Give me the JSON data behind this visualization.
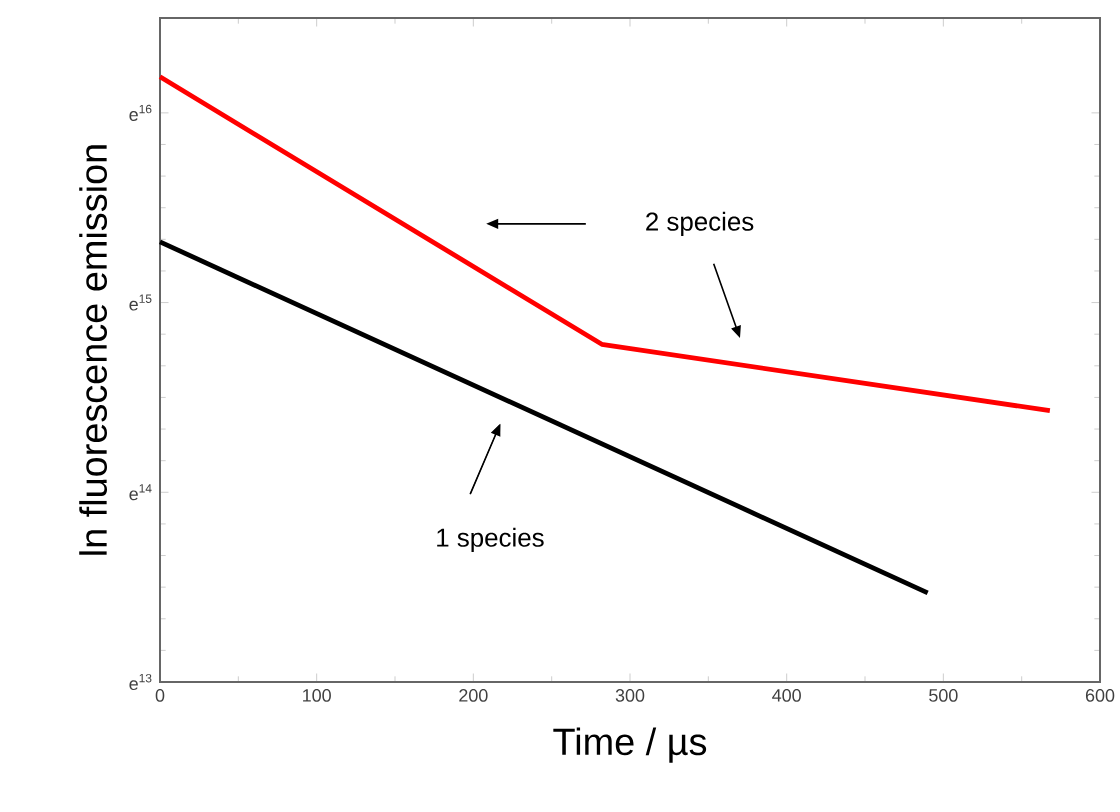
{
  "chart_data": {
    "type": "line",
    "xlabel": "Time / µs",
    "ylabel": "ln fluorescence emission",
    "series": [
      {
        "color": "#000000",
        "x": [
          0,
          490
        ],
        "values": [
          15.32,
          13.47
        ]
      },
      {
        "color": "#ff0000",
        "x": [
          0,
          282,
          568
        ],
        "values": [
          16.19,
          14.78,
          14.43
        ]
      }
    ],
    "xlim": [
      0,
      600
    ],
    "xticks": [
      0,
      100,
      200,
      300,
      400,
      500,
      600
    ],
    "ylim": [
      13,
      16.5
    ],
    "yticks": [
      {
        "value": 13,
        "label": "e$^{13}$"
      },
      {
        "value": 14,
        "label": "e$^{14}$"
      },
      {
        "value": 15,
        "label": "e$^{15}$"
      },
      {
        "value": 16,
        "label": "e$^{16}$"
      }
    ],
    "annotations": [
      "2 species",
      "1 species"
    ],
    "grid": false,
    "legend": false,
    "marker": "none",
    "line_style": "solid"
  }
}
